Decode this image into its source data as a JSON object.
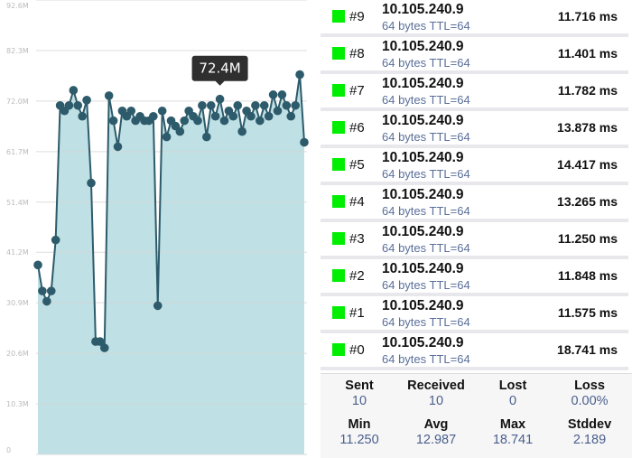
{
  "chart_data": {
    "type": "area",
    "title": "",
    "xlabel": "",
    "ylabel": "",
    "ylim": [
      0,
      92.6
    ],
    "y_ticks": [
      "0",
      "10.3M",
      "20.6M",
      "30.9M",
      "41.2M",
      "51.4M",
      "61.7M",
      "72.0M",
      "82.3M",
      "92.6M"
    ],
    "y_tick_values": [
      0,
      10.3,
      20.6,
      30.9,
      41.2,
      51.4,
      61.7,
      72.0,
      82.3,
      92.6
    ],
    "grid": true,
    "tooltip": {
      "label": "72.4M",
      "index": 41
    },
    "colors": {
      "line": "#2d5b6b",
      "fill": "#bfe0e4",
      "grid": "#d6d6d6"
    },
    "values": [
      38.6,
      33.3,
      31.2,
      33.3,
      43.7,
      71.1,
      70.0,
      71.1,
      74.2,
      71.1,
      68.9,
      72.2,
      55.3,
      23.0,
      23.0,
      21.7,
      73.1,
      68.0,
      62.7,
      70.0,
      68.9,
      70.0,
      68.0,
      68.9,
      68.0,
      68.0,
      68.9,
      30.3,
      70.0,
      64.7,
      68.0,
      66.9,
      65.8,
      68.0,
      70.0,
      68.9,
      68.0,
      71.1,
      64.7,
      71.1,
      68.9,
      72.4,
      68.0,
      70.0,
      68.9,
      71.1,
      65.8,
      70.0,
      68.9,
      71.1,
      68.0,
      71.1,
      68.9,
      73.3,
      70.0,
      73.3,
      71.1,
      68.9,
      71.1,
      77.4,
      63.6
    ]
  },
  "pings": [
    {
      "seq": "#9",
      "host": "10.105.240.9",
      "detail": "64 bytes TTL=64",
      "time": "11.716 ms",
      "status_color": "#00ee00"
    },
    {
      "seq": "#8",
      "host": "10.105.240.9",
      "detail": "64 bytes TTL=64",
      "time": "11.401 ms",
      "status_color": "#00ee00"
    },
    {
      "seq": "#7",
      "host": "10.105.240.9",
      "detail": "64 bytes TTL=64",
      "time": "11.782 ms",
      "status_color": "#00ee00"
    },
    {
      "seq": "#6",
      "host": "10.105.240.9",
      "detail": "64 bytes TTL=64",
      "time": "13.878 ms",
      "status_color": "#00ee00"
    },
    {
      "seq": "#5",
      "host": "10.105.240.9",
      "detail": "64 bytes TTL=64",
      "time": "14.417 ms",
      "status_color": "#00ee00"
    },
    {
      "seq": "#4",
      "host": "10.105.240.9",
      "detail": "64 bytes TTL=64",
      "time": "13.265 ms",
      "status_color": "#00ee00"
    },
    {
      "seq": "#3",
      "host": "10.105.240.9",
      "detail": "64 bytes TTL=64",
      "time": "11.250 ms",
      "status_color": "#00ee00"
    },
    {
      "seq": "#2",
      "host": "10.105.240.9",
      "detail": "64 bytes TTL=64",
      "time": "11.848 ms",
      "status_color": "#00ee00"
    },
    {
      "seq": "#1",
      "host": "10.105.240.9",
      "detail": "64 bytes TTL=64",
      "time": "11.575 ms",
      "status_color": "#00ee00"
    },
    {
      "seq": "#0",
      "host": "10.105.240.9",
      "detail": "64 bytes TTL=64",
      "time": "18.741 ms",
      "status_color": "#00ee00"
    }
  ],
  "stats": [
    {
      "label": "Sent",
      "value": "10"
    },
    {
      "label": "Received",
      "value": "10"
    },
    {
      "label": "Lost",
      "value": "0"
    },
    {
      "label": "Loss",
      "value": "0.00%"
    },
    {
      "label": "Min",
      "value": "11.250"
    },
    {
      "label": "Avg",
      "value": "12.987"
    },
    {
      "label": "Max",
      "value": "18.741"
    },
    {
      "label": "Stddev",
      "value": "2.189"
    }
  ]
}
